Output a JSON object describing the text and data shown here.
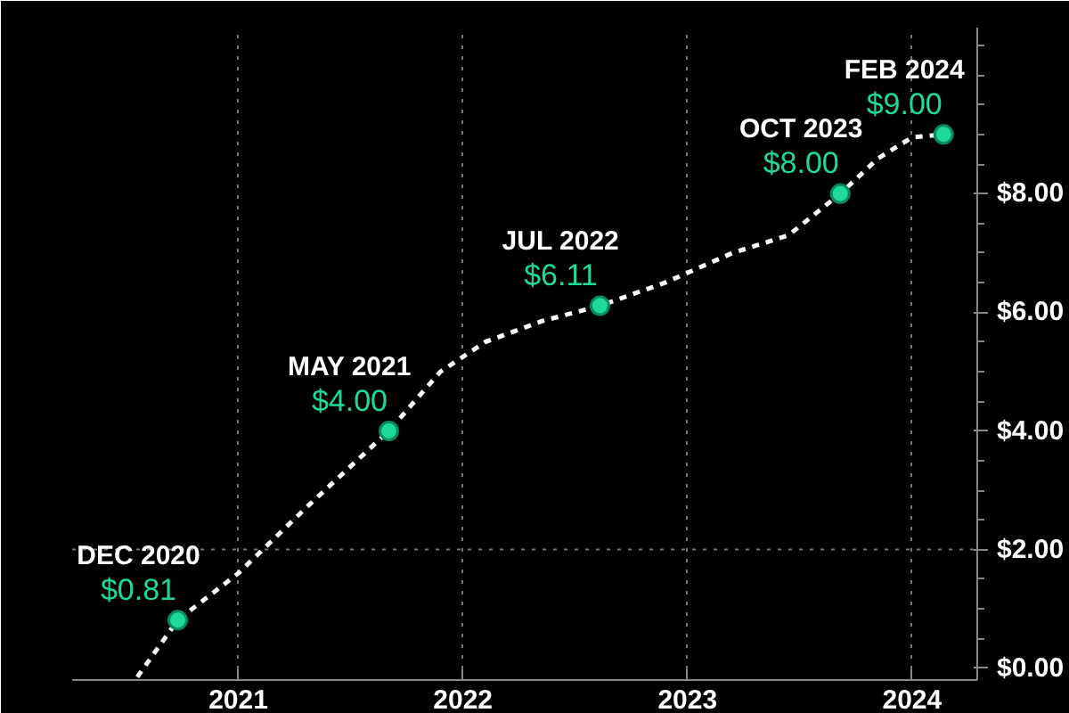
{
  "chart_data": {
    "type": "line",
    "xlim": [
      2020.26,
      2024.29
    ],
    "ylim": [
      -0.2,
      10.8
    ],
    "xticks": [
      2021,
      2022,
      2023,
      2024
    ],
    "yticks": [
      {
        "value": 0,
        "label": "$0.00"
      },
      {
        "value": 2,
        "label": "$2.00"
      },
      {
        "value": 4,
        "label": "$4.00"
      },
      {
        "value": 6,
        "label": "$6.00"
      },
      {
        "value": 8,
        "label": "$8.00"
      },
      {
        "value": 0.5,
        "label": null
      },
      {
        "value": 1,
        "label": null
      },
      {
        "value": 1.5,
        "label": null
      },
      {
        "value": 2.5,
        "label": null
      },
      {
        "value": 3,
        "label": null
      },
      {
        "value": 3.5,
        "label": null
      },
      {
        "value": 4.5,
        "label": null
      },
      {
        "value": 5,
        "label": null
      },
      {
        "value": 5.5,
        "label": null
      },
      {
        "value": 6.5,
        "label": null
      },
      {
        "value": 7,
        "label": null
      },
      {
        "value": 7.5,
        "label": null
      },
      {
        "value": 8.5,
        "label": null
      },
      {
        "value": 9,
        "label": null
      },
      {
        "value": 9.5,
        "label": null
      },
      {
        "value": 10,
        "label": null
      },
      {
        "value": 10.5,
        "label": null
      }
    ],
    "grid": "x",
    "ref_lines": [
      {
        "axis": "y",
        "value": 2,
        "label": null,
        "color": "#777777",
        "line_style": "dotted"
      }
    ],
    "series": [
      {
        "type": "line",
        "color": "#ffffff",
        "line_style": "dashed",
        "marker": "none",
        "x": [
          2020.55,
          2020.73,
          2021.0,
          2021.3,
          2021.67,
          2021.9,
          2022.1,
          2022.35,
          2022.61,
          2022.9,
          2023.2,
          2023.45,
          2023.68,
          2023.85,
          2024.0,
          2024.14
        ],
        "values": [
          -0.15,
          0.81,
          1.6,
          2.7,
          4.0,
          5.0,
          5.5,
          5.85,
          6.11,
          6.5,
          7.0,
          7.3,
          8.0,
          8.6,
          8.95,
          9.0
        ]
      },
      {
        "type": "scatter",
        "color": "#1fd99a",
        "marker": "circle",
        "x": [
          2020.73,
          2021.67,
          2022.61,
          2023.68,
          2024.14
        ],
        "values": [
          0.81,
          4.0,
          6.11,
          8.0,
          9.0
        ],
        "value_labels": [
          "$0.81",
          "$4.00",
          "$6.11",
          "$8.00",
          "$9.00"
        ]
      }
    ],
    "annotations": [
      {
        "text": "DEC 2020",
        "x": 2020.73,
        "y": 0.81
      },
      {
        "text": "MAY 2021",
        "x": 2021.67,
        "y": 4.0
      },
      {
        "text": "JUL 2022",
        "x": 2022.61,
        "y": 6.11
      },
      {
        "text": "OCT 2023",
        "x": 2023.68,
        "y": 8.0
      },
      {
        "text": "FEB 2024",
        "x": 2024.14,
        "y": 9.0
      }
    ]
  }
}
